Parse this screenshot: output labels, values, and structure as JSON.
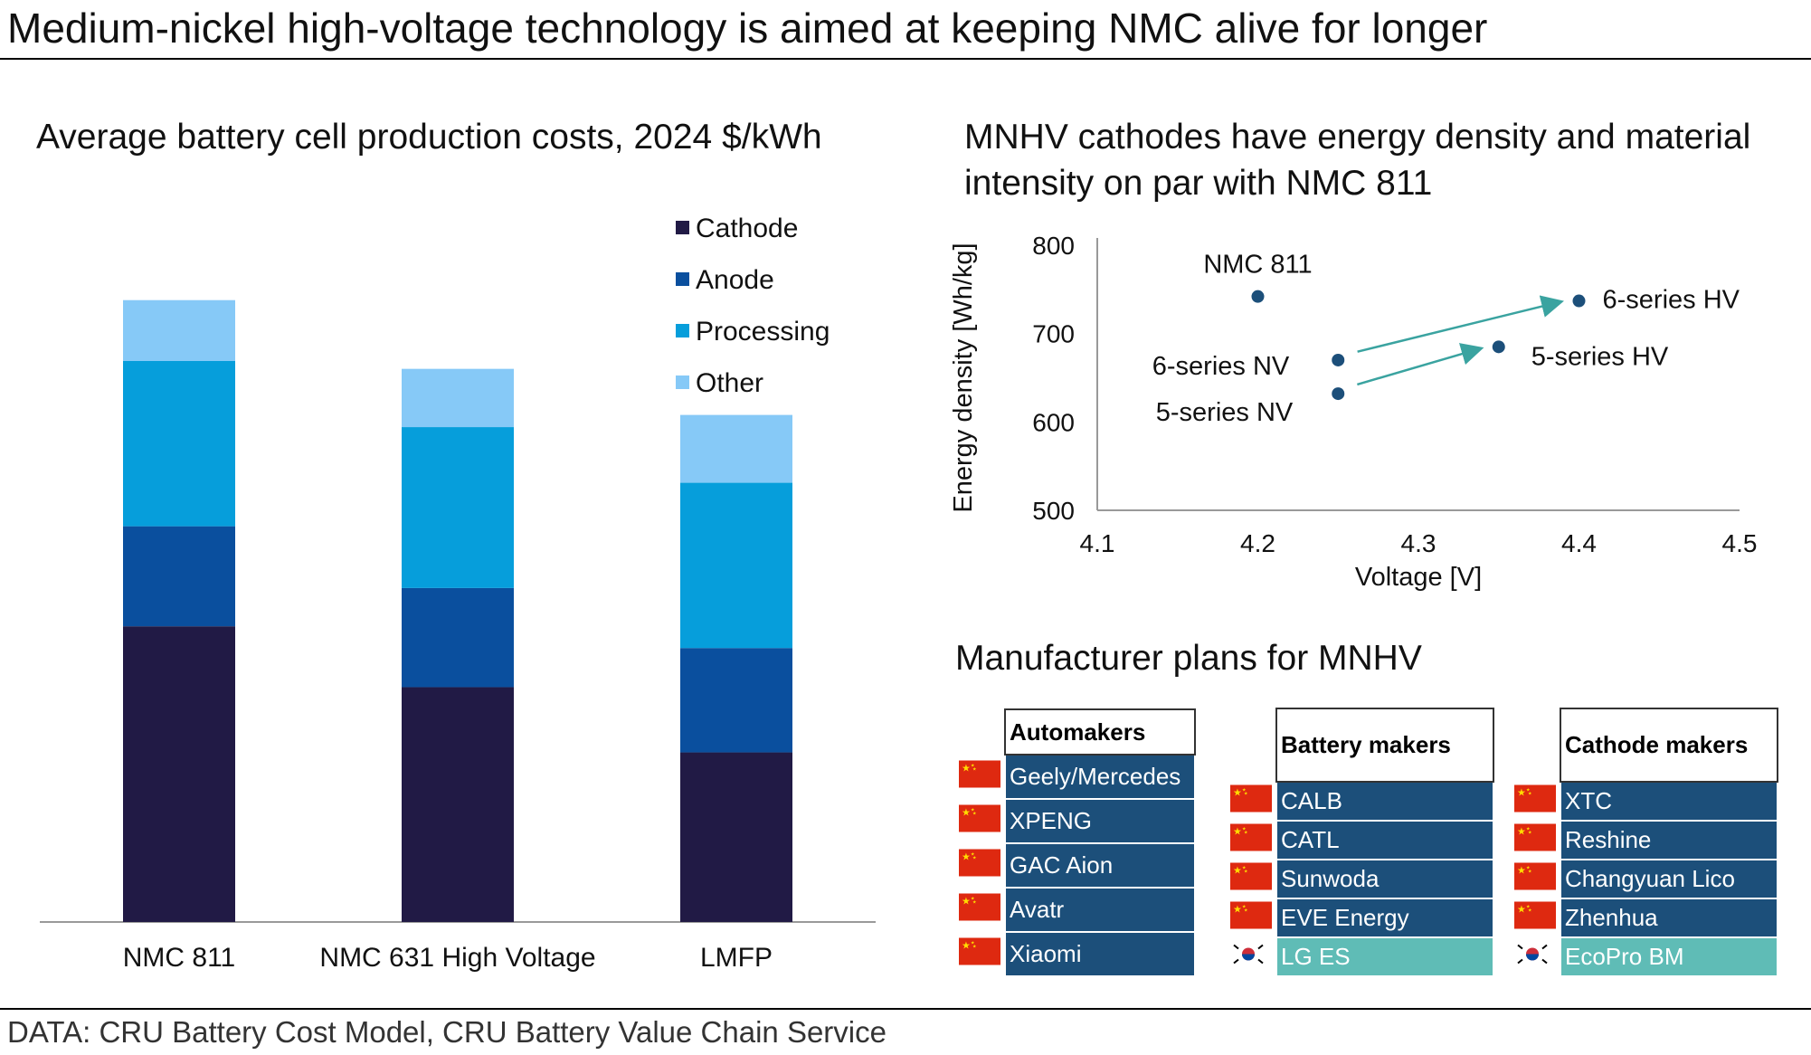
{
  "title": "Medium-nickel high-voltage technology is aimed at keeping NMC alive for longer",
  "source": "DATA: CRU Battery Cost Model, CRU Battery Value Chain Service",
  "colors": {
    "cathode": "#211a45",
    "anode": "#0a4f9e",
    "processing": "#069edb",
    "other": "#86c9f7",
    "scatter_point": "#1c4f7a",
    "arrow": "#3aa3a0",
    "table_fill": "#1c4f7a",
    "korea_fill": "#5fbcb6"
  },
  "chart_data": [
    {
      "type": "bar",
      "stacked": true,
      "title": "Average battery cell production costs, 2024 $/kWh",
      "categories": [
        "NMC 811",
        "NMC 631 High Voltage",
        "LMFP"
      ],
      "series": [
        {
          "name": "Cathode",
          "values": [
            34,
            27,
            19.5
          ]
        },
        {
          "name": "Anode",
          "values": [
            11.5,
            11.4,
            12
          ]
        },
        {
          "name": "Processing",
          "values": [
            19,
            18.5,
            19
          ]
        },
        {
          "name": "Other",
          "values": [
            7,
            6.7,
            7.8
          ]
        }
      ],
      "legend": "top-right",
      "ylim": [
        0,
        80
      ],
      "xlabel": "",
      "ylabel": ""
    },
    {
      "type": "scatter",
      "title": "MNHV cathodes have energy density and material intensity on par with NMC 811",
      "xlabel": "Voltage [V]",
      "ylabel": "Energy density [Wh/kg]",
      "xlim": [
        4.1,
        4.5
      ],
      "ylim": [
        500,
        800
      ],
      "xticks": [
        "4.1",
        "4.2",
        "4.3",
        "4.4",
        "4.5"
      ],
      "yticks": [
        "500",
        "600",
        "700",
        "800"
      ],
      "points": [
        {
          "label": "NMC 811",
          "x": 4.2,
          "y": 742
        },
        {
          "label": "6-series NV",
          "x": 4.25,
          "y": 670
        },
        {
          "label": "5-series NV",
          "x": 4.25,
          "y": 632
        },
        {
          "label": "6-series HV",
          "x": 4.4,
          "y": 737
        },
        {
          "label": "5-series HV",
          "x": 4.35,
          "y": 685
        }
      ],
      "arrows": [
        {
          "from": "6-series NV",
          "to": "6-series HV"
        },
        {
          "from": "5-series NV",
          "to": "5-series HV"
        }
      ]
    }
  ],
  "plans": {
    "title": "Manufacturer plans for MNHV",
    "tables": [
      {
        "header": "Automakers",
        "rows": [
          {
            "name": "Geely/Mercedes",
            "country": "China"
          },
          {
            "name": "XPENG",
            "country": "China"
          },
          {
            "name": "GAC Aion",
            "country": "China"
          },
          {
            "name": "Avatr",
            "country": "China"
          },
          {
            "name": "Xiaomi",
            "country": "China"
          }
        ]
      },
      {
        "header": "Battery makers",
        "rows": [
          {
            "name": "CALB",
            "country": "China"
          },
          {
            "name": "CATL",
            "country": "China"
          },
          {
            "name": "Sunwoda",
            "country": "China"
          },
          {
            "name": "EVE Energy",
            "country": "China"
          },
          {
            "name": "LG ES",
            "country": "Korea"
          }
        ]
      },
      {
        "header": "Cathode makers",
        "rows": [
          {
            "name": "XTC",
            "country": "China"
          },
          {
            "name": "Reshine",
            "country": "China"
          },
          {
            "name": "Changyuan Lico",
            "country": "China"
          },
          {
            "name": "Zhenhua",
            "country": "China"
          },
          {
            "name": "EcoPro BM",
            "country": "Korea"
          }
        ]
      }
    ]
  }
}
